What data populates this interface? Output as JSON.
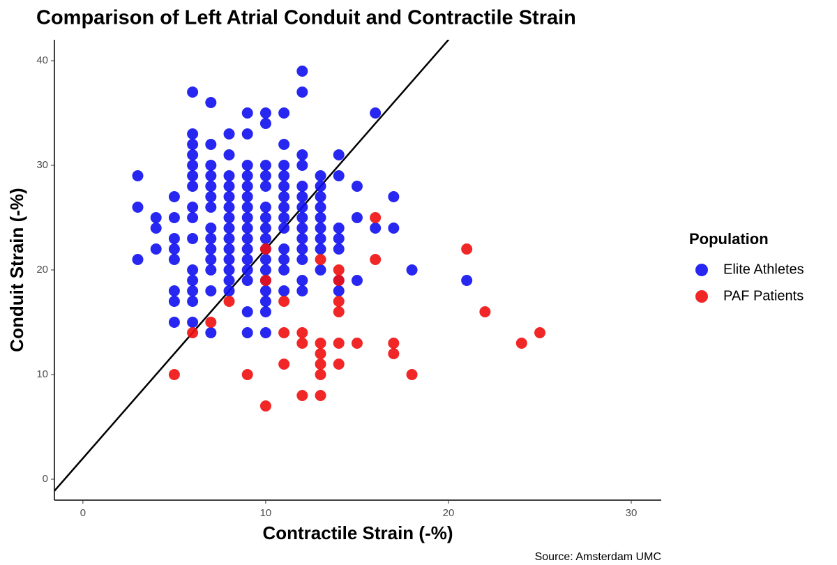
{
  "chart_data": {
    "type": "scatter",
    "title": "Comparison of Left Atrial Conduit and Contractile Strain",
    "x_label": "Contractile Strain (-%)",
    "y_label": "Conduit Strain (-%)",
    "legend_title": "Population",
    "source": "Source: Amsterdam UMC",
    "legend_position": "right",
    "grid": false,
    "xlim": [
      -1.56,
      31.64
    ],
    "xticks": [
      0,
      10,
      20,
      30
    ],
    "ylim": [
      -2,
      42
    ],
    "yticks": [
      0,
      10,
      20,
      30,
      40
    ],
    "reference_line": {
      "slope": 2,
      "intercept": 2,
      "color": "#000000"
    },
    "series": [
      {
        "name": "Elite Athletes",
        "color": "#1010f0",
        "x": [
          3,
          3,
          3,
          4,
          4,
          4,
          5,
          5,
          5,
          5,
          5,
          5,
          5,
          5,
          6,
          6,
          6,
          6,
          6,
          6,
          6,
          6,
          6,
          6,
          6,
          6,
          6,
          6,
          6,
          7,
          7,
          7,
          7,
          7,
          7,
          7,
          7,
          7,
          7,
          7,
          7,
          7,
          7,
          8,
          8,
          8,
          8,
          8,
          8,
          8,
          8,
          8,
          8,
          8,
          8,
          8,
          8,
          9,
          9,
          9,
          9,
          9,
          9,
          9,
          9,
          9,
          9,
          9,
          9,
          9,
          9,
          9,
          9,
          10,
          10,
          10,
          10,
          10,
          10,
          10,
          10,
          10,
          10,
          10,
          10,
          10,
          10,
          10,
          10,
          10,
          11,
          11,
          11,
          11,
          11,
          11,
          11,
          11,
          11,
          11,
          11,
          11,
          11,
          12,
          12,
          12,
          12,
          12,
          12,
          12,
          12,
          12,
          12,
          12,
          12,
          12,
          12,
          13,
          13,
          13,
          13,
          13,
          13,
          13,
          13,
          13,
          14,
          14,
          14,
          14,
          14,
          14,
          14,
          15,
          15,
          15,
          16,
          16,
          17,
          17,
          18,
          21
        ],
        "y": [
          29,
          26,
          21,
          25,
          24,
          22,
          27,
          25,
          23,
          22,
          21,
          18,
          17,
          15,
          37,
          33,
          32,
          31,
          30,
          29,
          28,
          26,
          25,
          23,
          20,
          19,
          18,
          17,
          15,
          36,
          32,
          30,
          29,
          28,
          27,
          26,
          24,
          23,
          22,
          21,
          20,
          18,
          14,
          33,
          31,
          29,
          28,
          27,
          26,
          25,
          24,
          23,
          22,
          21,
          20,
          19,
          18,
          35,
          33,
          30,
          29,
          28,
          27,
          26,
          25,
          24,
          23,
          22,
          21,
          20,
          19,
          16,
          14,
          35,
          34,
          30,
          29,
          28,
          26,
          25,
          24,
          23,
          22,
          21,
          20,
          19,
          18,
          17,
          16,
          14,
          35,
          32,
          30,
          29,
          28,
          27,
          26,
          25,
          24,
          22,
          21,
          20,
          18,
          39,
          37,
          31,
          30,
          28,
          27,
          26,
          25,
          24,
          23,
          22,
          21,
          19,
          18,
          29,
          28,
          27,
          26,
          25,
          24,
          23,
          22,
          20,
          31,
          29,
          24,
          23,
          22,
          19,
          18,
          28,
          25,
          19,
          35,
          24,
          27,
          24,
          20,
          19
        ]
      },
      {
        "name": "PAF Patients",
        "color": "#f01010",
        "x": [
          5,
          6,
          7,
          8,
          9,
          10,
          10,
          10,
          11,
          11,
          11,
          12,
          12,
          12,
          13,
          13,
          13,
          13,
          13,
          13,
          14,
          14,
          14,
          14,
          14,
          14,
          15,
          16,
          16,
          17,
          17,
          18,
          21,
          22,
          24,
          25
        ],
        "y": [
          10,
          14,
          15,
          17,
          10,
          22,
          19,
          7,
          17,
          14,
          11,
          14,
          13,
          8,
          21,
          13,
          12,
          11,
          10,
          8,
          20,
          19,
          17,
          16,
          13,
          11,
          13,
          25,
          21,
          13,
          12,
          10,
          22,
          16,
          13,
          14
        ]
      }
    ]
  }
}
